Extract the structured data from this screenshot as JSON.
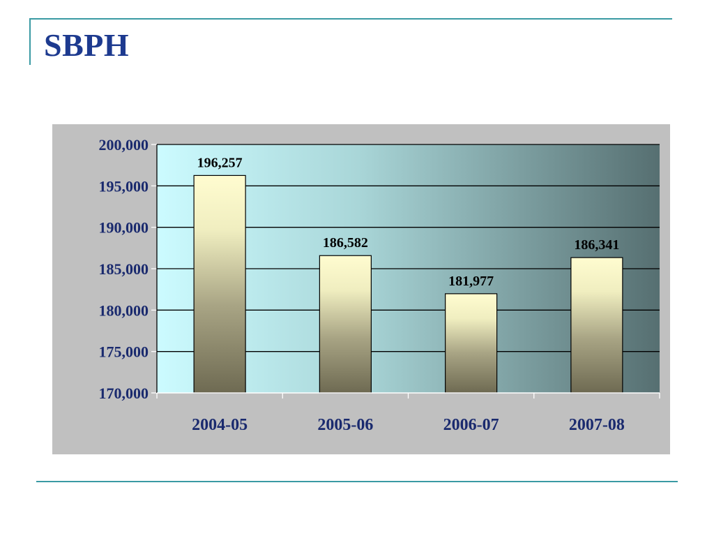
{
  "slide": {
    "title": "SBPH"
  },
  "colors": {
    "title": "#1d3a8f",
    "frame_line": "#3a9aa3",
    "panel_bg": "#c0c0c0",
    "plot_gradient_start": "#ccfbff",
    "plot_gradient_end": "#566f71",
    "bar_top": "#fffcd0",
    "bar_bottom": "#6e6a52",
    "axis_text": "#1a2a6e"
  },
  "chart_data": {
    "type": "bar",
    "categories": [
      "2004-05",
      "2005-06",
      "2006-07",
      "2007-08"
    ],
    "values": [
      196257,
      186582,
      181977,
      186341
    ],
    "data_labels": [
      "196,257",
      "186,582",
      "181,977",
      "186,341"
    ],
    "ylim": [
      170000,
      200000
    ],
    "yticks": [
      170000,
      175000,
      180000,
      185000,
      190000,
      195000,
      200000
    ],
    "ytick_labels": [
      "170,000",
      "175,000",
      "180,000",
      "185,000",
      "190,000",
      "195,000",
      "200,000"
    ],
    "grid": true,
    "legend": "none"
  }
}
